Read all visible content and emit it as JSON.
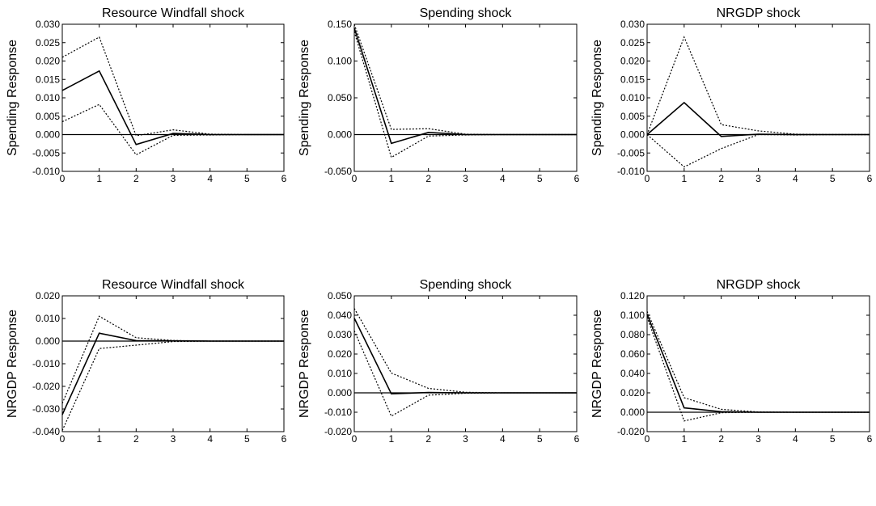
{
  "chart_data": [
    {
      "type": "line",
      "title": "Resource Windfall shock",
      "ylabel": "Spending Response",
      "xlabel": "",
      "x": [
        0,
        1,
        2,
        3,
        4,
        5,
        6
      ],
      "xlim": [
        0,
        6
      ],
      "ylim": [
        -0.01,
        0.03
      ],
      "yticks": [
        -0.01,
        -0.005,
        0.0,
        0.005,
        0.01,
        0.015,
        0.02,
        0.025,
        0.03
      ],
      "ytick_labels": [
        "-0.010",
        "-0.005",
        "0.000",
        "0.005",
        "0.010",
        "0.015",
        "0.020",
        "0.025",
        "0.030"
      ],
      "xtick_labels": [
        "0",
        "1",
        "2",
        "3",
        "4",
        "5",
        "6"
      ],
      "series": [
        {
          "style": "solid",
          "values": [
            0.012,
            0.0173,
            -0.0027,
            0.0003,
            0.0,
            0.0,
            0.0
          ]
        },
        {
          "style": "dotted",
          "values": [
            0.021,
            0.0265,
            -0.0003,
            0.0013,
            0.0001,
            0.0,
            0.0
          ]
        },
        {
          "style": "dotted",
          "values": [
            0.0035,
            0.0082,
            -0.0055,
            -0.0002,
            -0.0001,
            0.0,
            0.0
          ]
        }
      ]
    },
    {
      "type": "line",
      "title": "Spending shock",
      "ylabel": "Spending Response",
      "xlabel": "",
      "x": [
        0,
        1,
        2,
        3,
        4,
        5,
        6
      ],
      "xlim": [
        0,
        6
      ],
      "ylim": [
        -0.05,
        0.15
      ],
      "yticks": [
        -0.05,
        0.0,
        0.05,
        0.1,
        0.15
      ],
      "ytick_labels": [
        "-0.050",
        "0.000",
        "0.050",
        "0.100",
        "0.150"
      ],
      "xtick_labels": [
        "0",
        "1",
        "2",
        "3",
        "4",
        "5",
        "6"
      ],
      "series": [
        {
          "style": "solid",
          "values": [
            0.145,
            -0.012,
            0.003,
            0.0,
            0.0,
            0.0,
            0.0
          ]
        },
        {
          "style": "dotted",
          "values": [
            0.15,
            0.007,
            0.008,
            0.0005,
            0.0,
            0.0,
            0.0
          ]
        },
        {
          "style": "dotted",
          "values": [
            0.14,
            -0.031,
            -0.002,
            -0.0005,
            0.0,
            0.0,
            0.0
          ]
        }
      ]
    },
    {
      "type": "line",
      "title": "NRGDP shock",
      "ylabel": "Spending Response",
      "xlabel": "",
      "x": [
        0,
        1,
        2,
        3,
        4,
        5,
        6
      ],
      "xlim": [
        0,
        6
      ],
      "ylim": [
        -0.01,
        0.03
      ],
      "yticks": [
        -0.01,
        -0.005,
        0.0,
        0.005,
        0.01,
        0.015,
        0.02,
        0.025,
        0.03
      ],
      "ytick_labels": [
        "-0.010",
        "-0.005",
        "0.000",
        "0.005",
        "0.010",
        "0.015",
        "0.020",
        "0.025",
        "0.030"
      ],
      "xtick_labels": [
        "0",
        "1",
        "2",
        "3",
        "4",
        "5",
        "6"
      ],
      "series": [
        {
          "style": "solid",
          "values": [
            0.0,
            0.0087,
            -0.0005,
            0.0001,
            0.0,
            0.0,
            0.0
          ]
        },
        {
          "style": "dotted",
          "values": [
            0.0,
            0.0265,
            0.0027,
            0.001,
            0.0001,
            0.0,
            0.0
          ]
        },
        {
          "style": "dotted",
          "values": [
            0.0,
            -0.0088,
            -0.0038,
            0.0,
            -0.0001,
            0.0,
            0.0
          ]
        }
      ]
    },
    {
      "type": "line",
      "title": "Resource Windfall shock",
      "ylabel": "NRGDP Response",
      "xlabel": "",
      "x": [
        0,
        1,
        2,
        3,
        4,
        5,
        6
      ],
      "xlim": [
        0,
        6
      ],
      "ylim": [
        -0.04,
        0.02
      ],
      "yticks": [
        -0.04,
        -0.03,
        -0.02,
        -0.01,
        0.0,
        0.01,
        0.02
      ],
      "ytick_labels": [
        "-0.040",
        "-0.030",
        "-0.020",
        "-0.010",
        "0.000",
        "0.010",
        "0.020"
      ],
      "xtick_labels": [
        "0",
        "1",
        "2",
        "3",
        "4",
        "5",
        "6"
      ],
      "series": [
        {
          "style": "solid",
          "values": [
            -0.0325,
            0.0035,
            0.0002,
            0.0001,
            0.0,
            0.0,
            0.0
          ]
        },
        {
          "style": "dotted",
          "values": [
            -0.0275,
            0.011,
            0.0015,
            0.0003,
            0.0,
            0.0,
            0.0
          ]
        },
        {
          "style": "dotted",
          "values": [
            -0.0395,
            -0.0033,
            -0.0018,
            -0.0002,
            0.0,
            0.0,
            0.0
          ]
        }
      ]
    },
    {
      "type": "line",
      "title": "Spending shock",
      "ylabel": "NRGDP Response",
      "xlabel": "",
      "x": [
        0,
        1,
        2,
        3,
        4,
        5,
        6
      ],
      "xlim": [
        0,
        6
      ],
      "ylim": [
        -0.02,
        0.05
      ],
      "yticks": [
        -0.02,
        -0.01,
        0.0,
        0.01,
        0.02,
        0.03,
        0.04,
        0.05
      ],
      "ytick_labels": [
        "-0.020",
        "-0.010",
        "0.000",
        "0.010",
        "0.020",
        "0.030",
        "0.040",
        "0.050"
      ],
      "xtick_labels": [
        "0",
        "1",
        "2",
        "3",
        "4",
        "5",
        "6"
      ],
      "series": [
        {
          "style": "solid",
          "values": [
            0.0385,
            -0.0005,
            0.0002,
            0.0,
            0.0,
            0.0,
            0.0
          ]
        },
        {
          "style": "dotted",
          "values": [
            0.0435,
            0.0102,
            0.0023,
            0.0003,
            0.0,
            0.0,
            0.0
          ]
        },
        {
          "style": "dotted",
          "values": [
            0.032,
            -0.012,
            -0.0012,
            -0.0002,
            0.0,
            0.0,
            0.0
          ]
        }
      ]
    },
    {
      "type": "line",
      "title": "NRGDP shock",
      "ylabel": "NRGDP Response",
      "xlabel": "",
      "x": [
        0,
        1,
        2,
        3,
        4,
        5,
        6
      ],
      "xlim": [
        0,
        6
      ],
      "ylim": [
        -0.02,
        0.12
      ],
      "yticks": [
        -0.02,
        0.0,
        0.02,
        0.04,
        0.06,
        0.08,
        0.1,
        0.12
      ],
      "ytick_labels": [
        "-0.020",
        "0.000",
        "0.020",
        "0.040",
        "0.060",
        "0.080",
        "0.100",
        "0.120"
      ],
      "xtick_labels": [
        "0",
        "1",
        "2",
        "3",
        "4",
        "5",
        "6"
      ],
      "series": [
        {
          "style": "solid",
          "values": [
            0.101,
            0.0045,
            0.0006,
            0.0,
            0.0,
            0.0,
            0.0
          ]
        },
        {
          "style": "dotted",
          "values": [
            0.104,
            0.015,
            0.003,
            0.0003,
            0.0,
            0.0,
            0.0
          ]
        },
        {
          "style": "dotted",
          "values": [
            0.098,
            -0.009,
            -0.0005,
            0.0,
            0.0,
            0.0,
            0.0
          ]
        }
      ]
    }
  ]
}
